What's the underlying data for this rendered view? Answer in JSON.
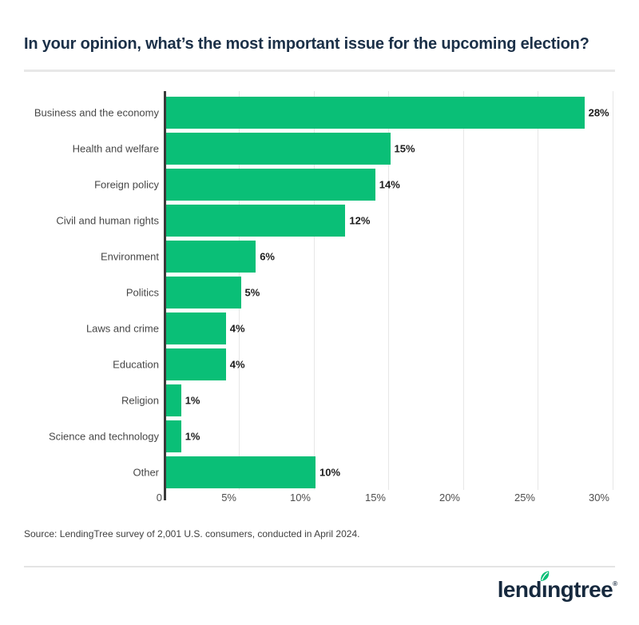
{
  "title": "In your opinion, what’s the most important issue for the upcoming election?",
  "chart_data": {
    "type": "bar",
    "orientation": "horizontal",
    "title": "In your opinion, what’s the most important issue for the upcoming election?",
    "categories": [
      "Business and the economy",
      "Health and welfare",
      "Foreign policy",
      "Civil and human rights",
      "Environment",
      "Politics",
      "Laws and crime",
      "Education",
      "Religion",
      "Science and technology",
      "Other"
    ],
    "values": [
      28,
      15,
      14,
      12,
      6,
      5,
      4,
      4,
      1,
      1,
      10
    ],
    "value_labels": [
      "28%",
      "15%",
      "14%",
      "12%",
      "6%",
      "5%",
      "4%",
      "4%",
      "1%",
      "1%",
      "10%"
    ],
    "xlabel": "",
    "ylabel": "",
    "xlim": [
      0,
      30
    ],
    "x_ticks": [
      "0",
      "5%",
      "10%",
      "15%",
      "20%",
      "25%",
      "30%"
    ],
    "x_tick_values": [
      0,
      5,
      10,
      15,
      20,
      25,
      30
    ],
    "grid": "vertical-on",
    "legend": "none",
    "bar_color": "#0abf77",
    "axis_color": "#3a3a3a"
  },
  "source": "Source: LendingTree survey of 2,001 U.S. consumers, conducted in April 2024.",
  "logo": {
    "text": "lendingtree",
    "part1": "lend",
    "dotless_i": "ı",
    "part2": "ngtree",
    "trademark": "®"
  },
  "colors": {
    "bar_green": "#0abf77",
    "brand_navy": "#16293e",
    "title_navy": "#1b3048",
    "divider_gray": "#e8e8e8"
  }
}
